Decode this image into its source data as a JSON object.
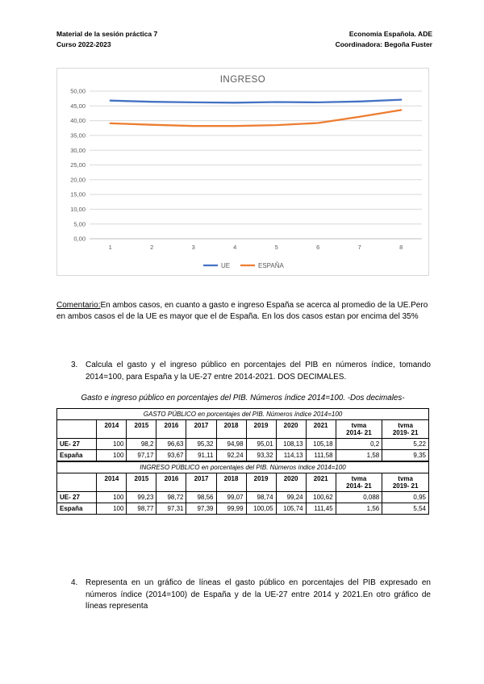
{
  "header": {
    "left1": "Material de la sesión práctica 7",
    "left2": "Curso 2022-2023",
    "right1": "Economía Española. ADE",
    "right2": "Coordinadora: Begoña Fuster"
  },
  "chart_data": {
    "type": "line",
    "title": "INGRESO",
    "x": [
      1,
      2,
      3,
      4,
      5,
      6,
      7,
      8
    ],
    "series": [
      {
        "name": "UE",
        "color": "#4472c4",
        "values": [
          46.8,
          46.4,
          46.2,
          46.1,
          46.3,
          46.2,
          46.5,
          47.1
        ]
      },
      {
        "name": "ESPAÑA",
        "color": "#ed7d31",
        "values": [
          39.1,
          38.6,
          38.2,
          38.2,
          38.5,
          39.2,
          41.3,
          43.6
        ]
      }
    ],
    "ylim": [
      0,
      50
    ],
    "ytick_step": 5,
    "grid": true,
    "legend_position": "bottom",
    "title_color": "#595959",
    "axis_label_color": "#595959",
    "gridline_color": "#d9d9d9"
  },
  "comentario": {
    "label": "Comentario:",
    "text": "En ambos casos, en cuanto a gasto e ingreso España se acerca al promedio de la UE.Pero en ambos casos el de la UE es mayor que el de España. En los dos casos estan por encima del 35%"
  },
  "item3": {
    "number": "3.",
    "text": "Calcula el gasto y el ingreso público en porcentajes del PIB en números índice, tomando 2014=100, para España y la UE-27 entre 2014-2021. DOS DECIMALES."
  },
  "table_caption": "Gasto e ingreso público en porcentajes del PIB. Números índice 2014=100. -Dos decimales-",
  "tables": [
    {
      "title": "GASTO PÚBLICO en porcentajes del PIB. Números índice 2014=100",
      "col_headers": [
        "",
        "2014",
        "2015",
        "2016",
        "2017",
        "2018",
        "2019",
        "2020",
        "2021",
        "tvma\n2014- 21",
        "tvma\n2019- 21"
      ],
      "rows": [
        {
          "label": "UE- 27",
          "values": [
            "100",
            "98,2",
            "96,63",
            "95,32",
            "94,98",
            "95,01",
            "108,13",
            "105,18",
            "0,2",
            "5,22"
          ]
        },
        {
          "label": "España",
          "values": [
            "100",
            "97,17",
            "93,67",
            "91,11",
            "92,24",
            "93,32",
            "114,13",
            "111,58",
            "1,58",
            "9,35"
          ]
        }
      ]
    },
    {
      "title": "INGRESO PÚBLICO en porcentajes del PIB. Números índice 2014=100",
      "col_headers": [
        "",
        "2014",
        "2015",
        "2016",
        "2017",
        "2018",
        "2019",
        "2020",
        "2021",
        "tvma\n2014- 21",
        "tvma\n2019- 21"
      ],
      "rows": [
        {
          "label": "UE- 27",
          "values": [
            "100",
            "99,23",
            "98,72",
            "98,56",
            "99,07",
            "98,74",
            "99,24",
            "100,62",
            "0,088",
            "0,95"
          ]
        },
        {
          "label": "España",
          "values": [
            "100",
            "98,77",
            "97,31",
            "97,39",
            "99,99",
            "100,05",
            "105,74",
            "111,45",
            "1,56",
            "5,54"
          ]
        }
      ]
    }
  ],
  "item4": {
    "number": "4.",
    "text": "Representa en un gráfico de líneas el gasto público en porcentajes del PIB expresado en números índice (2014=100) de España y de la UE-27 entre 2014 y 2021.En otro gráfico de líneas representa"
  }
}
